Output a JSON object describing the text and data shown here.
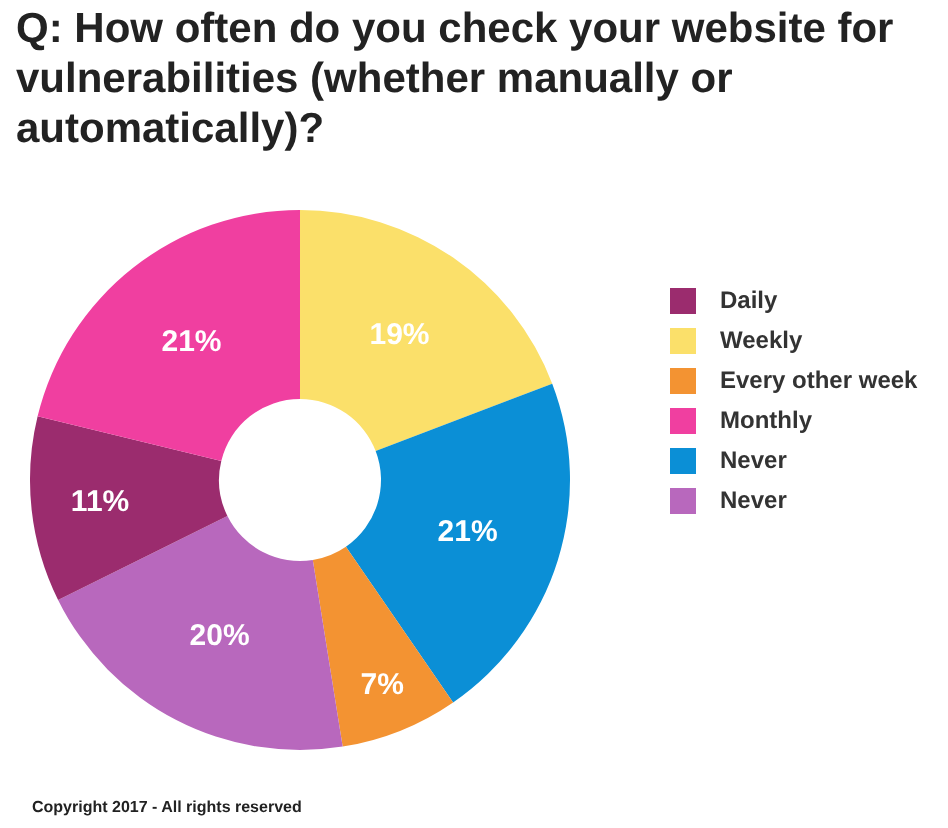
{
  "chart_data": {
    "type": "donut",
    "title": "Q: How often do you check your website for vulnerabilities (whether manually or automatically)?",
    "categories": [
      "Weekly",
      "Never",
      "Every other week",
      "Never",
      "Daily",
      "Monthly"
    ],
    "values": [
      19,
      21,
      7,
      20,
      11,
      21
    ],
    "colors": [
      "#fbe06a",
      "#0b8fd6",
      "#f39332",
      "#b868bd",
      "#9b2c6e",
      "#f03fa0"
    ],
    "value_labels": [
      "19%",
      "21%",
      "7%",
      "20%",
      "11%",
      "21%"
    ],
    "legend": "right",
    "annotations": [
      "Copyright 2017 - All rights reserved"
    ]
  }
}
